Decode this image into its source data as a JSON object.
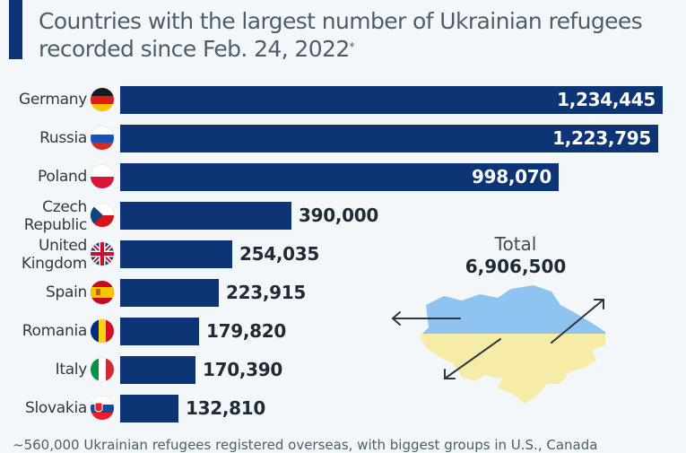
{
  "header": {
    "title": "Countries with the largest number of Ukrainian refugees recorded since Feb. 24, 2022",
    "title_line1": "Countries with the largest number of Ukrainian refugees",
    "title_line2": "recorded since Feb. 24, 2022",
    "title_footnote_mark": "*"
  },
  "colors": {
    "bar": "#0d3475",
    "background": "#f3f7fa",
    "ukraine_blue": "#90c4f0",
    "ukraine_yellow": "#f6eca8"
  },
  "rows": [
    {
      "label": "Germany",
      "label_lines": [
        "Germany"
      ],
      "flag": "germany-flag-icon",
      "value": "1,234,445"
    },
    {
      "label": "Russia",
      "label_lines": [
        "Russia"
      ],
      "flag": "russia-flag-icon",
      "value": "1,223,795"
    },
    {
      "label": "Poland",
      "label_lines": [
        "Poland"
      ],
      "flag": "poland-flag-icon",
      "value": "998,070"
    },
    {
      "label": "Czech Republic",
      "label_lines": [
        "Czech",
        "Republic"
      ],
      "flag": "czech-flag-icon",
      "value": "390,000"
    },
    {
      "label": "United Kingdom",
      "label_lines": [
        "United",
        "Kingdom"
      ],
      "flag": "uk-flag-icon",
      "value": "254,035"
    },
    {
      "label": "Spain",
      "label_lines": [
        "Spain"
      ],
      "flag": "spain-flag-icon",
      "value": "223,915"
    },
    {
      "label": "Romania",
      "label_lines": [
        "Romania"
      ],
      "flag": "romania-flag-icon",
      "value": "179,820"
    },
    {
      "label": "Italy",
      "label_lines": [
        "Italy"
      ],
      "flag": "italy-flag-icon",
      "value": "170,390"
    },
    {
      "label": "Slovakia",
      "label_lines": [
        "Slovakia"
      ],
      "flag": "slovakia-flag-icon",
      "value": "132,810"
    }
  ],
  "total": {
    "label": "Total",
    "value": "6,906,500"
  },
  "footnote": "~560,000 Ukrainian refugees registered overseas, with biggest groups in U.S., Canada",
  "chart_data": {
    "type": "bar",
    "orientation": "horizontal",
    "title": "Countries with the largest number of Ukrainian refugees recorded since Feb. 24, 2022*",
    "categories": [
      "Germany",
      "Russia",
      "Poland",
      "Czech Republic",
      "United Kingdom",
      "Spain",
      "Romania",
      "Italy",
      "Slovakia"
    ],
    "values": [
      1234445,
      1223795,
      998070,
      390000,
      254035,
      223915,
      179820,
      170390,
      132810
    ],
    "xlabel": "",
    "ylabel": "",
    "grid": false,
    "legend": null,
    "annotations": [
      {
        "text": "Total 6,906,500",
        "position": "right, above Ukraine map"
      },
      {
        "text": "~560,000 Ukrainian refugees registered overseas, with biggest groups in U.S., Canada",
        "position": "bottom footnote"
      }
    ]
  }
}
